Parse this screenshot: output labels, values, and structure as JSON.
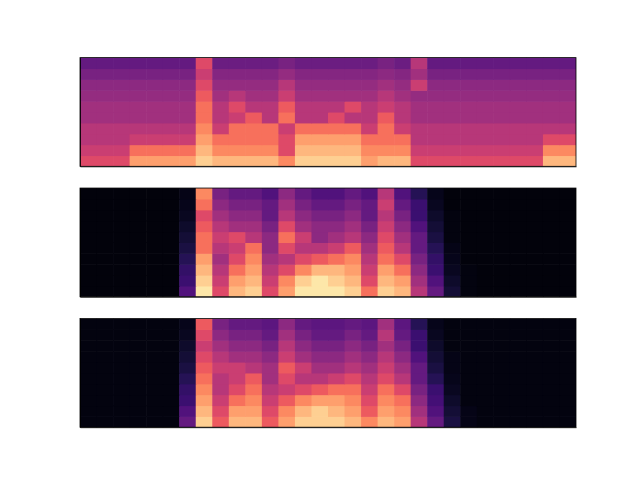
{
  "chart_data": [
    {
      "type": "heatmap",
      "tick_labels": false,
      "color": "magma",
      "zlim": [
        0,
        1
      ],
      "cells": [
        [
          0.6,
          0.6,
          0.6,
          0.8,
          0.8,
          0.8,
          0.8,
          0.9,
          0.85,
          0.85,
          0.85,
          0.85,
          0.75,
          0.9,
          0.9,
          0.9,
          0.9,
          0.8,
          0.85,
          0.85,
          0.6,
          0.6,
          0.6,
          0.6,
          0.6,
          0.6,
          0.6,
          0.6,
          0.85,
          0.85
        ],
        [
          0.55,
          0.55,
          0.55,
          0.7,
          0.7,
          0.7,
          0.7,
          0.85,
          0.75,
          0.75,
          0.75,
          0.75,
          0.6,
          0.85,
          0.85,
          0.85,
          0.85,
          0.75,
          0.75,
          0.75,
          0.55,
          0.55,
          0.55,
          0.55,
          0.55,
          0.55,
          0.55,
          0.55,
          0.75,
          0.75
        ],
        [
          0.5,
          0.5,
          0.5,
          0.55,
          0.55,
          0.55,
          0.55,
          0.8,
          0.7,
          0.7,
          0.7,
          0.7,
          0.6,
          0.8,
          0.8,
          0.8,
          0.8,
          0.7,
          0.7,
          0.7,
          0.5,
          0.5,
          0.5,
          0.5,
          0.5,
          0.5,
          0.5,
          0.5,
          0.6,
          0.6
        ],
        [
          0.5,
          0.5,
          0.5,
          0.5,
          0.5,
          0.5,
          0.5,
          0.75,
          0.55,
          0.7,
          0.7,
          0.7,
          0.55,
          0.7,
          0.7,
          0.7,
          0.7,
          0.55,
          0.7,
          0.55,
          0.5,
          0.5,
          0.5,
          0.5,
          0.5,
          0.5,
          0.5,
          0.5,
          0.5,
          0.5
        ],
        [
          0.45,
          0.45,
          0.45,
          0.45,
          0.45,
          0.45,
          0.45,
          0.7,
          0.5,
          0.55,
          0.65,
          0.5,
          0.7,
          0.5,
          0.5,
          0.6,
          0.5,
          0.5,
          0.65,
          0.5,
          0.45,
          0.45,
          0.45,
          0.45,
          0.45,
          0.45,
          0.45,
          0.45,
          0.45,
          0.45
        ],
        [
          0.45,
          0.45,
          0.45,
          0.45,
          0.45,
          0.45,
          0.45,
          0.7,
          0.5,
          0.6,
          0.5,
          0.5,
          0.65,
          0.5,
          0.5,
          0.5,
          0.6,
          0.5,
          0.55,
          0.5,
          0.45,
          0.45,
          0.45,
          0.45,
          0.45,
          0.45,
          0.45,
          0.45,
          0.45,
          0.45
        ],
        [
          0.42,
          0.42,
          0.42,
          0.42,
          0.42,
          0.42,
          0.42,
          0.65,
          0.45,
          0.5,
          0.45,
          0.45,
          0.55,
          0.45,
          0.45,
          0.45,
          0.45,
          0.45,
          0.5,
          0.45,
          0.42,
          0.42,
          0.42,
          0.42,
          0.42,
          0.42,
          0.42,
          0.42,
          0.42,
          0.42
        ],
        [
          0.4,
          0.4,
          0.4,
          0.4,
          0.4,
          0.4,
          0.4,
          0.6,
          0.42,
          0.42,
          0.42,
          0.42,
          0.5,
          0.42,
          0.42,
          0.42,
          0.42,
          0.42,
          0.45,
          0.42,
          0.55,
          0.4,
          0.4,
          0.4,
          0.4,
          0.4,
          0.4,
          0.4,
          0.4,
          0.4
        ],
        [
          0.35,
          0.35,
          0.35,
          0.35,
          0.35,
          0.35,
          0.35,
          0.55,
          0.38,
          0.38,
          0.38,
          0.38,
          0.42,
          0.38,
          0.38,
          0.38,
          0.38,
          0.38,
          0.4,
          0.38,
          0.45,
          0.35,
          0.35,
          0.35,
          0.35,
          0.35,
          0.35,
          0.35,
          0.35,
          0.35
        ],
        [
          0.3,
          0.3,
          0.3,
          0.3,
          0.3,
          0.3,
          0.3,
          0.6,
          0.32,
          0.32,
          0.32,
          0.32,
          0.35,
          0.32,
          0.32,
          0.32,
          0.32,
          0.32,
          0.35,
          0.32,
          0.5,
          0.3,
          0.3,
          0.3,
          0.3,
          0.3,
          0.3,
          0.3,
          0.3,
          0.3
        ]
      ]
    },
    {
      "type": "heatmap",
      "tick_labels": false,
      "color": "magma",
      "zlim": [
        0,
        1
      ],
      "cells": [
        [
          0.02,
          0.02,
          0.02,
          0.02,
          0.02,
          0.02,
          0.25,
          0.95,
          0.6,
          0.85,
          0.9,
          0.6,
          0.8,
          0.95,
          0.95,
          0.95,
          0.9,
          0.7,
          0.9,
          0.85,
          0.5,
          0.3,
          0.1,
          0.03,
          0.02,
          0.02,
          0.02,
          0.02,
          0.02,
          0.02
        ],
        [
          0.02,
          0.02,
          0.02,
          0.02,
          0.02,
          0.02,
          0.2,
          0.9,
          0.55,
          0.8,
          0.85,
          0.55,
          0.75,
          0.9,
          0.95,
          0.9,
          0.85,
          0.6,
          0.85,
          0.8,
          0.45,
          0.25,
          0.08,
          0.03,
          0.02,
          0.02,
          0.02,
          0.02,
          0.02,
          0.02
        ],
        [
          0.02,
          0.02,
          0.02,
          0.02,
          0.02,
          0.02,
          0.18,
          0.85,
          0.5,
          0.7,
          0.8,
          0.5,
          0.6,
          0.75,
          0.85,
          0.85,
          0.8,
          0.55,
          0.8,
          0.7,
          0.4,
          0.2,
          0.06,
          0.03,
          0.02,
          0.02,
          0.02,
          0.02,
          0.02,
          0.02
        ],
        [
          0.02,
          0.02,
          0.02,
          0.02,
          0.02,
          0.02,
          0.15,
          0.8,
          0.45,
          0.6,
          0.75,
          0.45,
          0.5,
          0.6,
          0.65,
          0.7,
          0.75,
          0.5,
          0.7,
          0.6,
          0.35,
          0.18,
          0.05,
          0.02,
          0.02,
          0.02,
          0.02,
          0.02,
          0.02,
          0.02
        ],
        [
          0.02,
          0.02,
          0.02,
          0.02,
          0.02,
          0.02,
          0.12,
          0.7,
          0.5,
          0.55,
          0.7,
          0.4,
          0.6,
          0.5,
          0.5,
          0.55,
          0.65,
          0.45,
          0.65,
          0.5,
          0.3,
          0.15,
          0.04,
          0.02,
          0.02,
          0.02,
          0.02,
          0.02,
          0.02,
          0.02
        ],
        [
          0.02,
          0.02,
          0.02,
          0.02,
          0.02,
          0.02,
          0.1,
          0.7,
          0.55,
          0.6,
          0.5,
          0.4,
          0.7,
          0.55,
          0.4,
          0.45,
          0.5,
          0.4,
          0.6,
          0.45,
          0.3,
          0.12,
          0.03,
          0.02,
          0.02,
          0.02,
          0.02,
          0.02,
          0.02,
          0.02
        ],
        [
          0.02,
          0.02,
          0.02,
          0.02,
          0.02,
          0.02,
          0.08,
          0.65,
          0.5,
          0.45,
          0.45,
          0.35,
          0.6,
          0.45,
          0.4,
          0.4,
          0.45,
          0.35,
          0.55,
          0.4,
          0.25,
          0.1,
          0.03,
          0.02,
          0.02,
          0.02,
          0.02,
          0.02,
          0.02,
          0.02
        ],
        [
          0.02,
          0.02,
          0.02,
          0.02,
          0.02,
          0.02,
          0.06,
          0.6,
          0.45,
          0.4,
          0.4,
          0.3,
          0.5,
          0.4,
          0.35,
          0.35,
          0.4,
          0.3,
          0.5,
          0.35,
          0.2,
          0.08,
          0.03,
          0.02,
          0.02,
          0.02,
          0.02,
          0.02,
          0.02,
          0.02
        ],
        [
          0.02,
          0.02,
          0.02,
          0.02,
          0.02,
          0.02,
          0.05,
          0.7,
          0.4,
          0.35,
          0.35,
          0.3,
          0.45,
          0.35,
          0.3,
          0.3,
          0.35,
          0.3,
          0.55,
          0.3,
          0.2,
          0.06,
          0.02,
          0.02,
          0.02,
          0.02,
          0.02,
          0.02,
          0.02,
          0.02
        ],
        [
          0.02,
          0.02,
          0.02,
          0.02,
          0.02,
          0.02,
          0.04,
          0.75,
          0.35,
          0.3,
          0.3,
          0.25,
          0.4,
          0.3,
          0.25,
          0.25,
          0.3,
          0.25,
          0.5,
          0.25,
          0.15,
          0.05,
          0.02,
          0.02,
          0.02,
          0.02,
          0.02,
          0.02,
          0.02,
          0.02
        ]
      ]
    },
    {
      "type": "heatmap",
      "tick_labels": false,
      "color": "magma",
      "zlim": [
        0,
        1
      ],
      "cells": [
        [
          0.03,
          0.03,
          0.03,
          0.03,
          0.03,
          0.03,
          0.3,
          0.9,
          0.65,
          0.85,
          0.85,
          0.65,
          0.8,
          0.9,
          0.9,
          0.9,
          0.85,
          0.75,
          0.85,
          0.8,
          0.5,
          0.3,
          0.12,
          0.04,
          0.03,
          0.03,
          0.03,
          0.03,
          0.03,
          0.03
        ],
        [
          0.03,
          0.03,
          0.03,
          0.03,
          0.03,
          0.03,
          0.25,
          0.85,
          0.6,
          0.8,
          0.8,
          0.6,
          0.75,
          0.85,
          0.9,
          0.85,
          0.8,
          0.65,
          0.8,
          0.75,
          0.45,
          0.25,
          0.1,
          0.04,
          0.03,
          0.03,
          0.03,
          0.03,
          0.03,
          0.03
        ],
        [
          0.03,
          0.03,
          0.03,
          0.03,
          0.03,
          0.03,
          0.2,
          0.8,
          0.55,
          0.7,
          0.75,
          0.55,
          0.65,
          0.75,
          0.8,
          0.8,
          0.75,
          0.6,
          0.75,
          0.7,
          0.4,
          0.22,
          0.08,
          0.03,
          0.03,
          0.03,
          0.03,
          0.03,
          0.03,
          0.03
        ],
        [
          0.03,
          0.03,
          0.03,
          0.03,
          0.03,
          0.03,
          0.18,
          0.75,
          0.5,
          0.6,
          0.7,
          0.5,
          0.55,
          0.6,
          0.65,
          0.7,
          0.7,
          0.55,
          0.7,
          0.6,
          0.35,
          0.2,
          0.06,
          0.03,
          0.03,
          0.03,
          0.03,
          0.03,
          0.03,
          0.03
        ],
        [
          0.03,
          0.03,
          0.03,
          0.03,
          0.03,
          0.03,
          0.15,
          0.7,
          0.5,
          0.55,
          0.65,
          0.45,
          0.6,
          0.5,
          0.5,
          0.55,
          0.6,
          0.5,
          0.6,
          0.5,
          0.3,
          0.15,
          0.05,
          0.03,
          0.03,
          0.03,
          0.03,
          0.03,
          0.03,
          0.03
        ],
        [
          0.03,
          0.03,
          0.03,
          0.03,
          0.03,
          0.03,
          0.12,
          0.65,
          0.55,
          0.55,
          0.5,
          0.45,
          0.65,
          0.55,
          0.45,
          0.45,
          0.5,
          0.45,
          0.55,
          0.45,
          0.3,
          0.12,
          0.04,
          0.03,
          0.03,
          0.03,
          0.03,
          0.03,
          0.03,
          0.03
        ],
        [
          0.03,
          0.03,
          0.03,
          0.03,
          0.03,
          0.03,
          0.1,
          0.6,
          0.5,
          0.45,
          0.45,
          0.4,
          0.55,
          0.45,
          0.4,
          0.4,
          0.45,
          0.4,
          0.5,
          0.4,
          0.25,
          0.1,
          0.04,
          0.03,
          0.03,
          0.03,
          0.03,
          0.03,
          0.03,
          0.03
        ],
        [
          0.03,
          0.03,
          0.03,
          0.03,
          0.03,
          0.03,
          0.08,
          0.55,
          0.45,
          0.4,
          0.4,
          0.35,
          0.5,
          0.4,
          0.35,
          0.35,
          0.4,
          0.35,
          0.45,
          0.35,
          0.2,
          0.08,
          0.03,
          0.03,
          0.03,
          0.03,
          0.03,
          0.03,
          0.03,
          0.03
        ],
        [
          0.03,
          0.03,
          0.03,
          0.03,
          0.03,
          0.03,
          0.06,
          0.6,
          0.4,
          0.35,
          0.35,
          0.3,
          0.45,
          0.35,
          0.3,
          0.3,
          0.35,
          0.3,
          0.5,
          0.3,
          0.2,
          0.06,
          0.03,
          0.03,
          0.03,
          0.03,
          0.03,
          0.03,
          0.03,
          0.03
        ],
        [
          0.03,
          0.03,
          0.03,
          0.03,
          0.03,
          0.03,
          0.05,
          0.65,
          0.35,
          0.3,
          0.3,
          0.28,
          0.4,
          0.3,
          0.28,
          0.28,
          0.3,
          0.28,
          0.45,
          0.28,
          0.15,
          0.05,
          0.03,
          0.03,
          0.03,
          0.03,
          0.03,
          0.03,
          0.03,
          0.03
        ]
      ]
    }
  ]
}
